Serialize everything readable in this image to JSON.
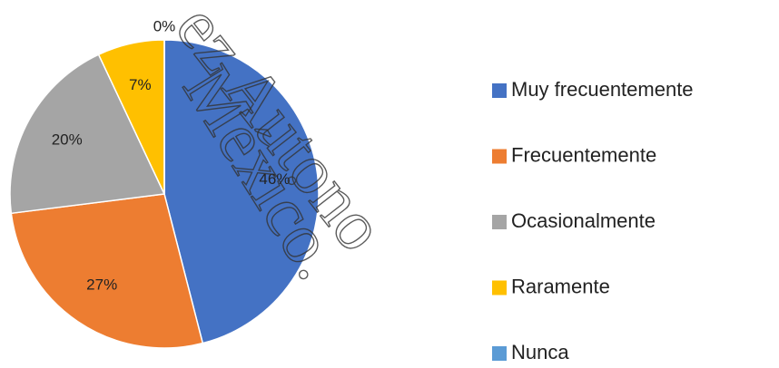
{
  "chart_data": {
    "type": "pie",
    "categories": [
      "Muy frecuentemente",
      "Frecuentemente",
      "Ocasionalmente",
      "Raramente",
      "Nunca"
    ],
    "values": [
      46,
      27,
      20,
      7,
      0
    ],
    "value_labels": [
      "46%",
      "27%",
      "20%",
      "7%",
      "0%"
    ],
    "colors": [
      "#4472c4",
      "#ed7d31",
      "#a5a5a5",
      "#ffc000",
      "#5b9bd5"
    ],
    "legend": "right"
  },
  "watermark": [
    "ez Autono",
    "México."
  ]
}
